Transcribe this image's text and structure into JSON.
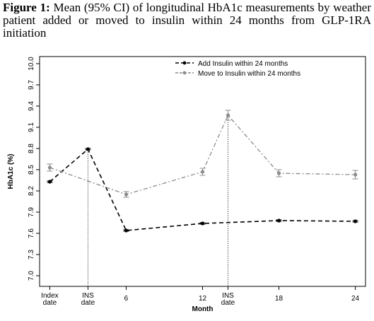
{
  "chart_data": {
    "type": "line",
    "caption_label": "Figure 1:",
    "title": "Mean (95% CI) of longitudinal HbA1c measurements by weather patient added or moved to insulin within 24 months from GLP-1RA initiation",
    "x_label": "Month",
    "y_label": "HbA1c (%)",
    "xlim": [
      -0.8,
      24.8
    ],
    "xticks": [
      {
        "value": 0,
        "label": "Index date"
      },
      {
        "value": 3,
        "label": "INS date"
      },
      6,
      12,
      {
        "value": 14,
        "label": "INS date"
      },
      18,
      24
    ],
    "ylim": [
      6.85,
      10.1
    ],
    "yticks": [
      {
        "value": 7,
        "label": "7.0"
      },
      7.3,
      7.6,
      7.9,
      8.2,
      8.5,
      8.8,
      9.1,
      9.4,
      9.7,
      {
        "value": 10,
        "label": "10.0"
      }
    ],
    "vlines": [
      3,
      14
    ],
    "legend": "top-right",
    "series": [
      {
        "name": "Add Insulin within 24 months",
        "color": "#000000",
        "x": [
          0,
          3,
          6,
          12,
          18,
          24
        ],
        "values": [
          8.33,
          8.79,
          7.64,
          7.74,
          7.78,
          7.77
        ],
        "errors": [
          0.01,
          0.01,
          0.01,
          0.01,
          0.01,
          0.01
        ]
      },
      {
        "name": "Move to Insulin within 24 months",
        "color": "#8c8c8c",
        "x": [
          0,
          6,
          12,
          14,
          18,
          24
        ],
        "values": [
          8.53,
          8.15,
          8.47,
          9.27,
          8.45,
          8.43
        ],
        "errors": [
          0.05,
          0.04,
          0.05,
          0.07,
          0.05,
          0.06
        ]
      }
    ]
  }
}
